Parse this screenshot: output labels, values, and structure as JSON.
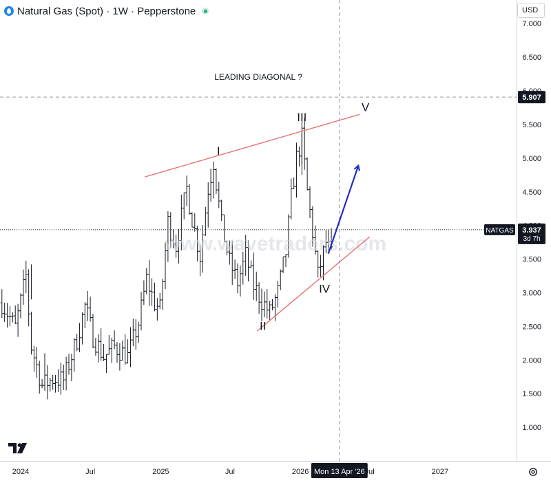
{
  "header": {
    "title": "Natural Gas (Spot) · 1W · Pepperstone",
    "symbol_icon": "natural-gas-flame-icon",
    "status_icon": "market-open-dot-icon"
  },
  "currency_button": {
    "label": "USD"
  },
  "annotation_title": "LEADING DIAGONAL ?",
  "watermark": "www.wavetraders.com",
  "wave_labels": [
    "I",
    "II",
    "III",
    "IV",
    "V"
  ],
  "price_tags": [
    {
      "label": "",
      "value": "5.907"
    },
    {
      "label": "NATGAS",
      "value": "3.937",
      "sub": "3d 7h"
    }
  ],
  "crosshair_date": "Mon 13 Apr '26",
  "colors": {
    "trendline": "#e57373",
    "arrow": "#1f2cc4",
    "bars": "#131722",
    "grid_dash": "#9598a1",
    "tag_bg": "#131722"
  },
  "chart_data": {
    "type": "ohlc",
    "timeframe": "1W",
    "y_axis": {
      "ticks": [
        "1.000",
        "1.500",
        "2.000",
        "2.500",
        "3.000",
        "3.500",
        "4.000",
        "4.500",
        "5.000",
        "5.500",
        "6.000",
        "6.500",
        "7.000"
      ],
      "range": [
        0.5,
        7.35
      ]
    },
    "x_axis": {
      "ticks": [
        "2024",
        "Jul",
        "2025",
        "Jul",
        "2026",
        "Jul",
        "2027"
      ],
      "range": [
        "2023-11-08",
        "2027-07-20"
      ]
    },
    "last_price": 3.937,
    "horizontal_level": 5.907,
    "crosshair_date": "2026-04-13",
    "ohlc_points": [
      [
        "2023-11-13",
        2.85
      ],
      [
        "2023-12-18",
        2.48
      ],
      [
        "2024-01-15",
        3.25
      ],
      [
        "2024-01-29",
        2.2
      ],
      [
        "2024-02-26",
        1.62
      ],
      [
        "2024-03-25",
        1.72
      ],
      [
        "2024-04-22",
        1.7
      ],
      [
        "2024-05-27",
        2.3
      ],
      [
        "2024-06-17",
        2.8
      ],
      [
        "2024-07-08",
        2.35
      ],
      [
        "2024-08-05",
        2.05
      ],
      [
        "2024-09-02",
        2.2
      ],
      [
        "2024-10-07",
        2.05
      ],
      [
        "2024-11-04",
        2.55
      ],
      [
        "2024-11-25",
        3.2
      ],
      [
        "2024-12-16",
        2.85
      ],
      [
        "2024-12-30",
        2.75
      ],
      [
        "2025-01-20",
        4.05
      ],
      [
        "2025-02-10",
        3.7
      ],
      [
        "2025-03-10",
        4.55
      ],
      [
        "2025-03-24",
        4.1
      ],
      [
        "2025-04-14",
        3.55
      ],
      [
        "2025-05-05",
        4.55
      ],
      [
        "2025-05-19",
        4.95
      ],
      [
        "2025-06-09",
        4.0
      ],
      [
        "2025-06-30",
        3.45
      ],
      [
        "2025-07-21",
        3.15
      ],
      [
        "2025-08-11",
        3.55
      ],
      [
        "2025-09-01",
        3.1
      ],
      [
        "2025-09-22",
        2.88
      ],
      [
        "2025-10-13",
        2.7
      ],
      [
        "2025-11-03",
        3.0
      ],
      [
        "2025-11-24",
        3.6
      ],
      [
        "2025-12-08",
        4.4
      ],
      [
        "2025-12-22",
        5.0
      ],
      [
        "2026-01-05",
        5.3
      ],
      [
        "2026-01-19",
        4.5
      ],
      [
        "2026-02-02",
        3.9
      ],
      [
        "2026-02-16",
        3.25
      ],
      [
        "2026-03-09",
        3.75
      ],
      [
        "2026-03-23",
        3.55
      ]
    ],
    "annotations": {
      "text": "LEADING DIAGONAL ?",
      "waves": [
        {
          "label": "I",
          "date": "2025-06-01",
          "price": 5.05
        },
        {
          "label": "II",
          "date": "2025-09-25",
          "price": 2.45
        },
        {
          "label": "III",
          "date": "2026-01-05",
          "price": 5.55
        },
        {
          "label": "IV",
          "date": "2026-03-05",
          "price": 3.0
        },
        {
          "label": "V",
          "date": "2026-06-20",
          "price": 5.7
        }
      ],
      "upper_trendline": [
        [
          "2024-11-20",
          4.72
        ],
        [
          "2026-06-05",
          5.65
        ]
      ],
      "lower_trendline": [
        [
          "2025-09-10",
          2.43
        ],
        [
          "2026-07-01",
          3.83
        ]
      ],
      "projection_arrow": [
        [
          "2026-03-15",
          3.58
        ],
        [
          "2026-06-01",
          4.88
        ]
      ]
    }
  }
}
